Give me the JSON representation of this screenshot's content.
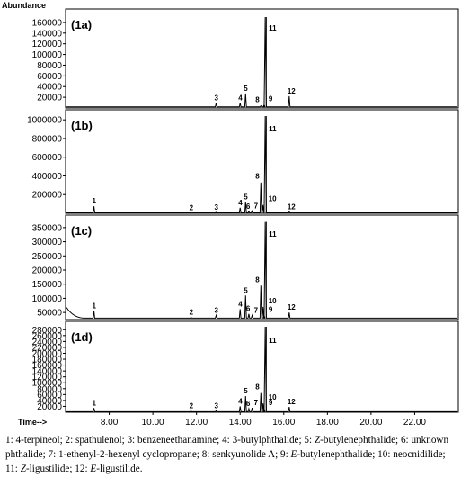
{
  "chart_data": {
    "type": "line",
    "xlabel": "Time-->",
    "ylabel": "Abundance",
    "xlim": [
      6.0,
      24.0
    ],
    "x_ticks": [
      "8.00",
      "10.00",
      "12.00",
      "14.00",
      "16.00",
      "18.00",
      "20.00",
      "22.00"
    ],
    "x_tick_values": [
      8,
      10,
      12,
      14,
      16,
      18,
      20,
      22
    ],
    "panels": [
      {
        "label": "(1a)",
        "ylim": [
          0,
          175000
        ],
        "y_ticks": [
          "20000",
          "40000",
          "60000",
          "80000",
          "100000",
          "120000",
          "140000",
          "160000"
        ],
        "y_tick_values": [
          20000,
          40000,
          60000,
          80000,
          100000,
          120000,
          140000,
          160000
        ],
        "baseline": 2000,
        "peaks": [
          {
            "label": "3",
            "x": 12.9,
            "y": 9000
          },
          {
            "label": "4",
            "x": 14.0,
            "y": 9000
          },
          {
            "label": "5",
            "x": 14.25,
            "y": 27000
          },
          {
            "label": "8",
            "x": 14.95,
            "y": 4000
          },
          {
            "label": "9",
            "x": 15.1,
            "y": 6000
          },
          {
            "label": "11",
            "x": 15.15,
            "y": 170000
          },
          {
            "label": "12",
            "x": 16.25,
            "y": 22000
          }
        ]
      },
      {
        "label": "(1b)",
        "ylim": [
          0,
          1050000
        ],
        "y_ticks": [
          "200000",
          "400000",
          "600000",
          "800000",
          "1000000"
        ],
        "y_tick_values": [
          200000,
          400000,
          600000,
          800000,
          1000000
        ],
        "baseline": 5000,
        "peaks": [
          {
            "label": "1",
            "x": 7.3,
            "y": 75000
          },
          {
            "label": "2",
            "x": 11.75,
            "y": 5000
          },
          {
            "label": "3",
            "x": 12.9,
            "y": 10000
          },
          {
            "label": "4",
            "x": 14.0,
            "y": 60000
          },
          {
            "label": "5",
            "x": 14.25,
            "y": 120000
          },
          {
            "label": "6",
            "x": 14.4,
            "y": 20000
          },
          {
            "label": "7",
            "x": 14.55,
            "y": 25000
          },
          {
            "label": "8",
            "x": 14.95,
            "y": 330000
          },
          {
            "label": "10",
            "x": 15.05,
            "y": 90000
          },
          {
            "label": "11",
            "x": 15.15,
            "y": 1040000
          },
          {
            "label": "12",
            "x": 16.25,
            "y": 15000
          }
        ]
      },
      {
        "label": "(1c)",
        "ylim": [
          25000,
          375000
        ],
        "y_ticks": [
          "50000",
          "100000",
          "150000",
          "200000",
          "250000",
          "300000",
          "350000"
        ],
        "y_tick_values": [
          50000,
          100000,
          150000,
          200000,
          250000,
          300000,
          350000
        ],
        "baseline": 30000,
        "peaks": [
          {
            "label": "1",
            "x": 7.3,
            "y": 55000
          },
          {
            "label": "2",
            "x": 11.75,
            "y": 33000
          },
          {
            "label": "3",
            "x": 12.9,
            "y": 40000
          },
          {
            "label": "4",
            "x": 14.0,
            "y": 62000
          },
          {
            "label": "5",
            "x": 14.25,
            "y": 110000
          },
          {
            "label": "6",
            "x": 14.4,
            "y": 45000
          },
          {
            "label": "7",
            "x": 14.55,
            "y": 40000
          },
          {
            "label": "8",
            "x": 14.95,
            "y": 145000
          },
          {
            "label": "9",
            "x": 15.1,
            "y": 40000
          },
          {
            "label": "10",
            "x": 15.05,
            "y": 70000
          },
          {
            "label": "11",
            "x": 15.15,
            "y": 370000
          },
          {
            "label": "12",
            "x": 16.25,
            "y": 50000
          }
        ]
      },
      {
        "label": "(1d)",
        "ylim": [
          0,
          290000
        ],
        "y_ticks": [
          "20000",
          "40000",
          "60000",
          "80000",
          "100000",
          "120000",
          "140000",
          "160000",
          "180000",
          "200000",
          "220000",
          "240000",
          "260000",
          "280000"
        ],
        "y_tick_values": [
          20000,
          40000,
          60000,
          80000,
          100000,
          120000,
          140000,
          160000,
          180000,
          200000,
          220000,
          240000,
          260000,
          280000
        ],
        "baseline": 2000,
        "peaks": [
          {
            "label": "1",
            "x": 7.3,
            "y": 14000
          },
          {
            "label": "2",
            "x": 11.75,
            "y": 4000
          },
          {
            "label": "3",
            "x": 12.9,
            "y": 5000
          },
          {
            "label": "4",
            "x": 14.0,
            "y": 20000
          },
          {
            "label": "5",
            "x": 14.25,
            "y": 55000
          },
          {
            "label": "6",
            "x": 14.4,
            "y": 12000
          },
          {
            "label": "7",
            "x": 14.55,
            "y": 15000
          },
          {
            "label": "8",
            "x": 14.95,
            "y": 65000
          },
          {
            "label": "9",
            "x": 15.1,
            "y": 12000
          },
          {
            "label": "10",
            "x": 15.05,
            "y": 30000
          },
          {
            "label": "11",
            "x": 15.15,
            "y": 290000
          },
          {
            "label": "12",
            "x": 16.25,
            "y": 18000
          }
        ]
      }
    ]
  },
  "caption": {
    "parts": [
      {
        "text": "1: 4-terpineol; 2: spathulenol; 3: benzeneethanamine; 4: 3-butylphthalide; 5: "
      },
      {
        "text": "Z",
        "italic": true
      },
      {
        "text": "-butylenephthalide; 6: unknown phthalide; 7: 1-ethenyl-2-hexenyl cyclopropane; 8: senkyunolide A; 9: "
      },
      {
        "text": "E",
        "italic": true
      },
      {
        "text": "-butylenephthalide; 10: neocnidilide; 11: "
      },
      {
        "text": "Z",
        "italic": true
      },
      {
        "text": "-ligustilide; 12: "
      },
      {
        "text": "E",
        "italic": true
      },
      {
        "text": "-ligustilide."
      }
    ]
  }
}
